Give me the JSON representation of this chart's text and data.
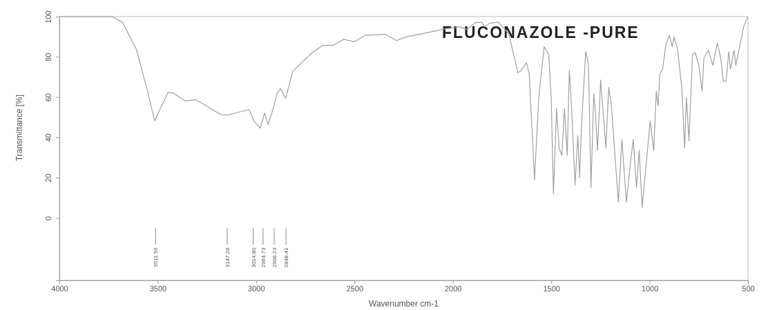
{
  "chart_data": {
    "type": "line",
    "title": "FLUCONAZOLE -PURE",
    "xlabel": "Wavenumber cm-1",
    "ylabel": "Transmittance [%]",
    "xlim": [
      4000,
      500
    ],
    "xticks": [
      4000,
      3500,
      3000,
      2500,
      2000,
      1500,
      1000,
      500
    ],
    "ylim": [
      -31,
      100
    ],
    "yticks": [
      0,
      20,
      40,
      60,
      80,
      100
    ],
    "series": [
      {
        "color": "#a0a0a0",
        "x": [
          4000,
          3734,
          3680,
          3609,
          3555,
          3516,
          3448,
          3421,
          3359,
          3305,
          3252,
          3180,
          3147.28,
          3109,
          3037,
          3011,
          2980,
          2957,
          2939,
          2908.23,
          2894,
          2876,
          2850,
          2814,
          2716,
          2662,
          2609,
          2555,
          2501,
          2448,
          2341,
          2287,
          2234,
          2109,
          2055,
          1965,
          1929,
          1884,
          1853,
          1839,
          1814,
          1769,
          1715,
          1670,
          1657,
          1626,
          1612,
          1585,
          1563,
          1536,
          1513,
          1500,
          1489,
          1473,
          1460,
          1446,
          1433,
          1419,
          1408,
          1397,
          1379,
          1365,
          1356,
          1347,
          1325,
          1311,
          1298,
          1284,
          1275,
          1265,
          1249,
          1222,
          1208,
          1195,
          1159,
          1141,
          1118,
          1096,
          1083,
          1067,
          1053,
          1038,
          997,
          979,
          966,
          957,
          948,
          934,
          917,
          899,
          885,
          876,
          858,
          836,
          822,
          813,
          800,
          782,
          768,
          750,
          733,
          724,
          701,
          679,
          656,
          638,
          625,
          611,
          598,
          589,
          571,
          562,
          522,
          502
        ],
        "values": [
          100,
          100,
          97.3,
          83.8,
          64.2,
          48.2,
          62.4,
          62,
          58.1,
          58.7,
          55.6,
          51.3,
          51,
          52,
          53.8,
          48.2,
          44.6,
          52,
          46.4,
          56,
          61.7,
          64.2,
          59.3,
          72.8,
          82,
          85.7,
          85.7,
          88.7,
          87.5,
          90.6,
          91.2,
          88.1,
          90,
          92.4,
          93.6,
          94.9,
          93.6,
          97.1,
          97.1,
          94.9,
          96.7,
          97.3,
          91.2,
          72.2,
          72.8,
          77.1,
          71.5,
          18.8,
          60.5,
          85,
          81.4,
          59.3,
          12,
          54.4,
          34.7,
          31.1,
          54.4,
          31.1,
          73.4,
          55.6,
          16.3,
          40.9,
          20,
          44.6,
          82.6,
          76.5,
          15.1,
          61.7,
          51.9,
          33.5,
          68.5,
          34.7,
          64.8,
          56.8,
          7.8,
          39,
          7.8,
          28.6,
          39,
          15.1,
          33.5,
          5.3,
          48.2,
          33.5,
          63,
          55.6,
          71.5,
          74,
          86.3,
          90.6,
          85,
          89.9,
          83.8,
          64.2,
          34.7,
          59.9,
          38.4,
          81.4,
          82,
          75.8,
          63,
          79.5,
          83.2,
          75.8,
          86.9,
          78.9,
          67.9,
          67.9,
          82.6,
          74,
          83.2,
          75.8,
          94.9,
          99.8
        ]
      }
    ],
    "annotations": [
      {
        "text": "3511.56",
        "x": 3511.56
      },
      {
        "text": "3147.28",
        "x": 3147.28
      },
      {
        "text": "3014.80",
        "x": 3014.8
      },
      {
        "text": "2964.73",
        "x": 2964.73
      },
      {
        "text": "2908.23",
        "x": 2908.23
      },
      {
        "text": "2848.41",
        "x": 2848.41
      }
    ],
    "grid": false,
    "marker": "none",
    "line_style": "solid"
  }
}
